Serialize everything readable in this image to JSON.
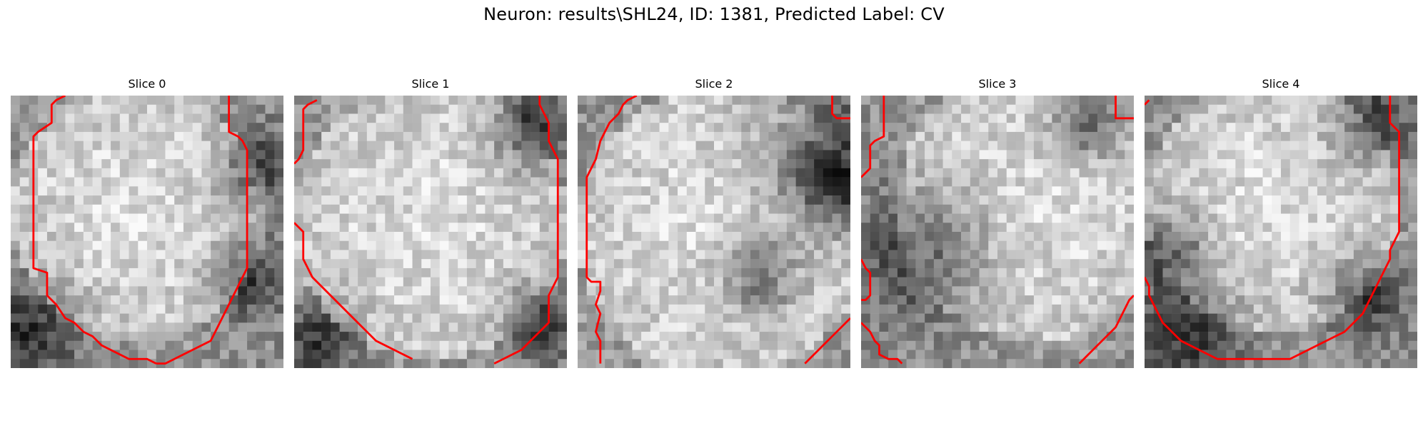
{
  "figure": {
    "title": "Neuron: results\\SHL24, ID: 1381, Predicted Label: CV"
  },
  "colors": {
    "contour": "#ff0000",
    "background": "#ffffff",
    "colormap": "gray"
  },
  "slices": [
    {
      "title": "Slice 0",
      "bright_center": [
        14,
        13
      ],
      "bright_radius": 10,
      "dark_spots": [
        [
          2,
          26,
          4
        ],
        [
          26,
          20,
          3
        ],
        [
          27,
          8,
          3
        ]
      ],
      "contour_paths": [
        [
          [
            6,
            0
          ],
          [
            5,
            0.5
          ],
          [
            4.5,
            1
          ],
          [
            4.5,
            3
          ],
          [
            3,
            4
          ],
          [
            2.5,
            4.5
          ],
          [
            2.5,
            19
          ],
          [
            4,
            19.5
          ],
          [
            4,
            22
          ],
          [
            5,
            23
          ],
          [
            6,
            24.5
          ],
          [
            7,
            25
          ],
          [
            7.5,
            25.5
          ],
          [
            8,
            26
          ],
          [
            9,
            26.5
          ],
          [
            10,
            27.5
          ],
          [
            11,
            28
          ],
          [
            12,
            28.5
          ],
          [
            13,
            29
          ],
          [
            14,
            29
          ],
          [
            15,
            29
          ],
          [
            16,
            29.5
          ]
        ],
        [
          [
            24,
            0
          ],
          [
            24,
            4
          ],
          [
            25,
            4.5
          ],
          [
            25.5,
            5
          ],
          [
            26,
            6
          ],
          [
            26,
            19
          ],
          [
            25.5,
            20
          ],
          [
            25,
            21
          ],
          [
            24.5,
            22
          ],
          [
            24,
            23
          ],
          [
            23.5,
            24
          ],
          [
            23,
            25
          ],
          [
            22.5,
            26
          ],
          [
            22,
            27
          ],
          [
            21,
            27.5
          ],
          [
            20,
            28
          ],
          [
            19,
            28.5
          ],
          [
            18,
            29
          ],
          [
            17,
            29.5
          ],
          [
            16,
            29.5
          ]
        ]
      ]
    },
    {
      "title": "Slice 1",
      "bright_center": [
        15,
        14
      ],
      "bright_radius": 11,
      "dark_spots": [
        [
          26,
          4,
          3
        ],
        [
          27,
          25,
          3
        ],
        [
          3,
          27,
          3
        ]
      ],
      "contour_paths": [
        [
          [
            2.5,
            0.5
          ],
          [
            1.5,
            1
          ],
          [
            1,
            1.5
          ],
          [
            1,
            6
          ],
          [
            0.5,
            7
          ],
          [
            0,
            7.5
          ]
        ],
        [
          [
            0,
            14
          ],
          [
            0.5,
            14.5
          ],
          [
            1,
            15
          ],
          [
            1,
            18
          ],
          [
            1.5,
            19
          ],
          [
            2,
            20
          ],
          [
            3,
            21
          ],
          [
            4,
            22
          ],
          [
            5,
            23
          ],
          [
            6,
            24
          ],
          [
            7,
            25
          ],
          [
            8,
            26
          ],
          [
            9,
            27
          ],
          [
            10,
            27.5
          ],
          [
            11,
            28
          ],
          [
            12,
            28.5
          ],
          [
            13,
            29
          ]
        ],
        [
          [
            27,
            0
          ],
          [
            27,
            1
          ],
          [
            27.5,
            2
          ],
          [
            28,
            3
          ],
          [
            28,
            5
          ],
          [
            28.5,
            6
          ],
          [
            29,
            7
          ],
          [
            29,
            20
          ],
          [
            28.5,
            21
          ],
          [
            28,
            22
          ],
          [
            28,
            25
          ],
          [
            27,
            26
          ],
          [
            26,
            27
          ],
          [
            25,
            28
          ],
          [
            24,
            28.5
          ],
          [
            23,
            29
          ],
          [
            22,
            29.5
          ]
        ]
      ]
    },
    {
      "title": "Slice 2",
      "bright_center": [
        16,
        15
      ],
      "bright_radius": 12,
      "dark_spots": [
        [
          27,
          7,
          5
        ],
        [
          29,
          10,
          3
        ],
        [
          20,
          20,
          3
        ]
      ],
      "contour_paths": [
        [
          [
            6.5,
            0
          ],
          [
            5.5,
            0.5
          ],
          [
            5,
            1
          ],
          [
            4.5,
            2
          ],
          [
            4,
            2.5
          ],
          [
            3.5,
            3
          ],
          [
            3,
            4
          ],
          [
            2.5,
            5
          ],
          [
            2,
            7
          ],
          [
            1.5,
            8
          ],
          [
            1,
            9
          ],
          [
            1,
            20
          ],
          [
            1.5,
            20.5
          ],
          [
            2.5,
            20.5
          ],
          [
            2.5,
            21.5
          ],
          [
            2,
            23
          ],
          [
            2.5,
            24
          ],
          [
            2,
            26
          ],
          [
            2.5,
            27
          ],
          [
            2.5,
            29.5
          ]
        ],
        [
          [
            28,
            0
          ],
          [
            28,
            2
          ],
          [
            28.5,
            2.5
          ],
          [
            30,
            2.5
          ]
        ],
        [
          [
            25,
            29.5
          ],
          [
            26,
            28.5
          ],
          [
            27,
            27.5
          ],
          [
            28,
            26.5
          ],
          [
            29,
            25.5
          ],
          [
            30,
            24.5
          ]
        ]
      ]
    },
    {
      "title": "Slice 3",
      "bright_center": [
        19,
        12
      ],
      "bright_radius": 11,
      "dark_spots": [
        [
          7,
          17,
          5
        ],
        [
          25,
          3,
          3
        ]
      ],
      "contour_paths": [
        [
          [
            2.5,
            0
          ],
          [
            2.5,
            4.5
          ],
          [
            1.5,
            5
          ],
          [
            1,
            5.5
          ],
          [
            1,
            8
          ],
          [
            0.5,
            8.5
          ],
          [
            0,
            9
          ]
        ],
        [
          [
            0,
            18
          ],
          [
            0.5,
            19
          ],
          [
            1,
            19.5
          ],
          [
            1,
            22
          ],
          [
            0.5,
            22.5
          ],
          [
            0,
            22.5
          ]
        ],
        [
          [
            0,
            25
          ],
          [
            1,
            26
          ],
          [
            1.5,
            27
          ],
          [
            2,
            27.5
          ],
          [
            2,
            28.5
          ],
          [
            3,
            29
          ],
          [
            4,
            29
          ],
          [
            4.5,
            29.5
          ]
        ],
        [
          [
            28,
            0
          ],
          [
            28,
            2.5
          ],
          [
            29,
            2.5
          ],
          [
            30,
            2.5
          ]
        ],
        [
          [
            24,
            29.5
          ],
          [
            25,
            28.5
          ],
          [
            26,
            27.5
          ],
          [
            27,
            26.5
          ],
          [
            28,
            25.5
          ],
          [
            28.5,
            24.5
          ],
          [
            29,
            23.5
          ],
          [
            29.5,
            22.5
          ],
          [
            30,
            22
          ]
        ]
      ]
    },
    {
      "title": "Slice 4",
      "bright_center": [
        14,
        12
      ],
      "bright_radius": 10,
      "dark_spots": [
        [
          25,
          3,
          3
        ],
        [
          3,
          17,
          3
        ],
        [
          5,
          26,
          4
        ],
        [
          24,
          22,
          3
        ]
      ],
      "contour_paths": [
        [
          [
            0.5,
            0.5
          ],
          [
            0,
            1
          ]
        ],
        [
          [
            27,
            0
          ],
          [
            27,
            3
          ],
          [
            27.5,
            3.5
          ],
          [
            28,
            4
          ],
          [
            28,
            15
          ],
          [
            27.5,
            16
          ],
          [
            27,
            17
          ],
          [
            27,
            18
          ],
          [
            26.5,
            19
          ],
          [
            26,
            20
          ],
          [
            25.5,
            21
          ],
          [
            25,
            22
          ],
          [
            24.5,
            23
          ],
          [
            24,
            24
          ],
          [
            23,
            25
          ],
          [
            22,
            26
          ],
          [
            21,
            26.5
          ],
          [
            20,
            27
          ],
          [
            19,
            27.5
          ],
          [
            18,
            28
          ],
          [
            17,
            28.5
          ],
          [
            16,
            29
          ],
          [
            14,
            29
          ],
          [
            12,
            29
          ],
          [
            10,
            29
          ],
          [
            8,
            29
          ],
          [
            7,
            28.5
          ],
          [
            6,
            28
          ],
          [
            5,
            27.5
          ],
          [
            4,
            27
          ],
          [
            3,
            26
          ],
          [
            2,
            25
          ],
          [
            1.5,
            24
          ],
          [
            1,
            23
          ],
          [
            0.5,
            22
          ],
          [
            0.5,
            21
          ],
          [
            0,
            20
          ]
        ]
      ]
    }
  ]
}
